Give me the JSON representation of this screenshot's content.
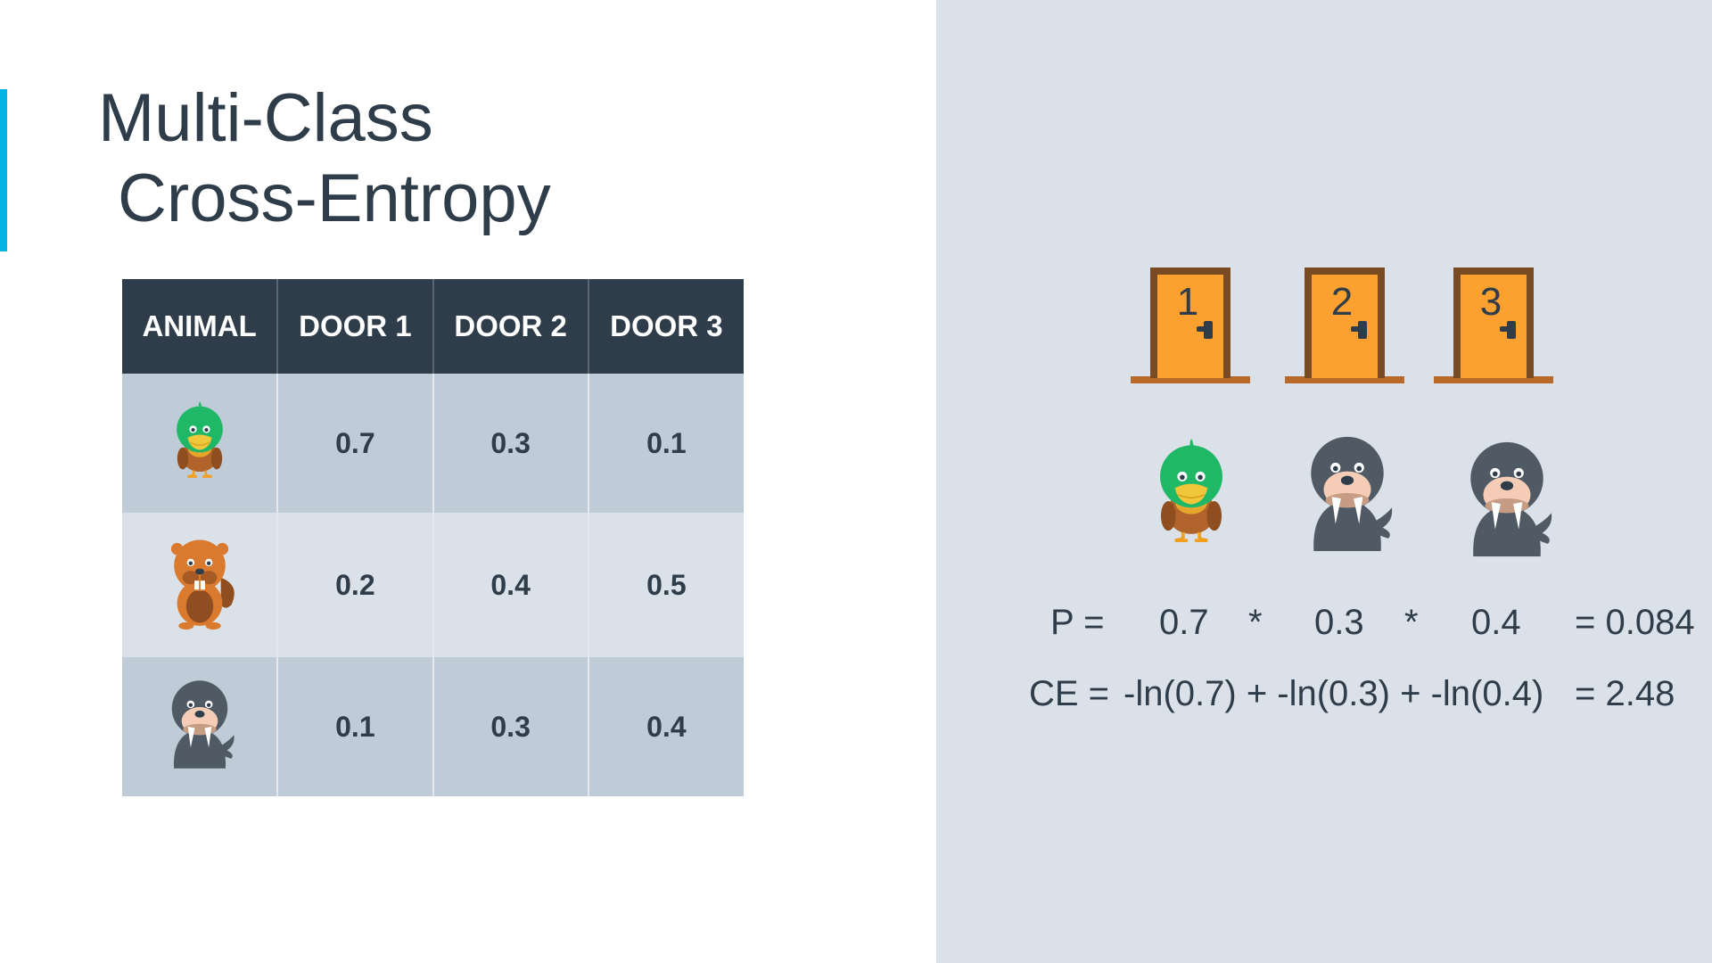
{
  "slide": {
    "title_line1": "Multi-Class",
    "title_line2": "Cross-Entropy",
    "accent_color": "#05b3e4"
  },
  "table": {
    "headers": [
      "ANIMAL",
      "DOOR 1",
      "DOOR 2",
      "DOOR 3"
    ],
    "rows": [
      {
        "animal_icon": "duck-icon",
        "values": [
          "0.7",
          "0.3",
          "0.1"
        ]
      },
      {
        "animal_icon": "beaver-icon",
        "values": [
          "0.2",
          "0.4",
          "0.5"
        ]
      },
      {
        "animal_icon": "walrus-icon",
        "values": [
          "0.1",
          "0.3",
          "0.4"
        ]
      }
    ]
  },
  "doors": [
    {
      "number": "1",
      "icon": "door-icon",
      "animal_icon": "duck-icon"
    },
    {
      "number": "2",
      "icon": "door-icon",
      "animal_icon": "walrus-icon"
    },
    {
      "number": "3",
      "icon": "door-icon",
      "animal_icon": "walrus-icon"
    }
  ],
  "equations": {
    "p_label": "P =",
    "p_terms": [
      "0.7",
      "*",
      "0.3",
      "*",
      "0.4"
    ],
    "p_result": "= 0.084",
    "ce_label": "CE =",
    "ce_expression": "-ln(0.7) + -ln(0.3) + -ln(0.4)",
    "ce_result": "= 2.48"
  },
  "colors": {
    "header_bg": "#2e3d49",
    "row_dark": "#bfcbd6",
    "row_light": "#dbe1e8",
    "panel_bg": "#dbe1e8",
    "door_orange": "#fca030",
    "door_frame": "#7a4a22"
  }
}
